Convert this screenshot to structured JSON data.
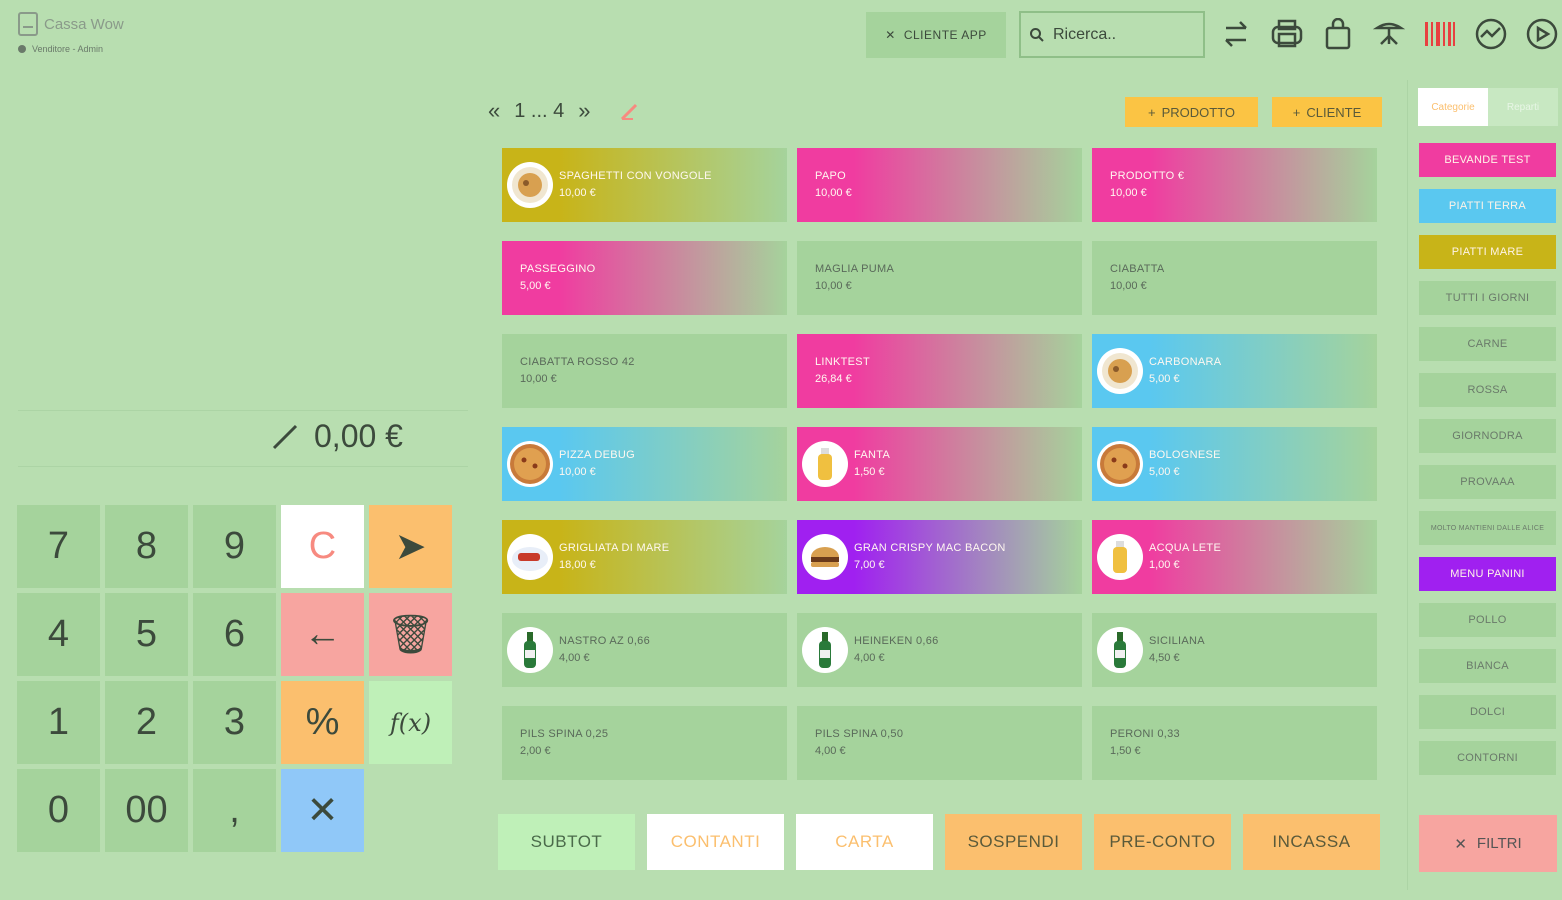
{
  "app": {
    "title": "Cassa Wow",
    "user": "Venditore - Admin"
  },
  "header": {
    "cliente_app_label": "CLIENTE APP",
    "search_placeholder": "Ricerca..",
    "icons": [
      "swap-icon",
      "printer-icon",
      "bag-icon",
      "beach-icon",
      "barcode-icon",
      "chart-icon",
      "settings-icon"
    ]
  },
  "pager": {
    "prev": "«",
    "pages": "1 ... 4",
    "next": "»"
  },
  "top_buttons": {
    "product_label": "PRODOTTO",
    "customer_label": "CLIENTE"
  },
  "display": {
    "total": "0,00 €"
  },
  "keypad": [
    {
      "label": "7",
      "style": "num"
    },
    {
      "label": "8",
      "style": "num"
    },
    {
      "label": "9",
      "style": "num"
    },
    {
      "label": "C",
      "style": "white"
    },
    {
      "label": "➤",
      "style": "orange"
    },
    {
      "label": "4",
      "style": "num"
    },
    {
      "label": "5",
      "style": "num"
    },
    {
      "label": "6",
      "style": "num"
    },
    {
      "label": "←",
      "style": "pink"
    },
    {
      "label": "🗑",
      "style": "pink"
    },
    {
      "label": "1",
      "style": "num"
    },
    {
      "label": "2",
      "style": "num"
    },
    {
      "label": "3",
      "style": "num"
    },
    {
      "label": "%",
      "style": "orange"
    },
    {
      "label": "f(x)",
      "style": "lgreen"
    },
    {
      "label": "0",
      "style": "num"
    },
    {
      "label": "00",
      "style": "num"
    },
    {
      "label": ",",
      "style": "num"
    },
    {
      "label": "✕",
      "style": "blue"
    },
    {
      "label": "",
      "style": "empty"
    }
  ],
  "products": [
    {
      "name": "SPAGHETTI CON VONGOLE",
      "price": "10,00 €",
      "color": "#c8b418",
      "image": "pasta"
    },
    {
      "name": "PAPO",
      "price": "10,00 €",
      "color": "#f03ca0",
      "image": ""
    },
    {
      "name": "PRODOTTO €",
      "price": "10,00 €",
      "color": "#f03ca0",
      "image": ""
    },
    {
      "name": "PASSEGGINO",
      "price": "5,00 €",
      "color": "#f03ca0",
      "image": ""
    },
    {
      "name": "MAGLIA PUMA",
      "price": "10,00 €",
      "color": "",
      "image": ""
    },
    {
      "name": "CIABATTA",
      "price": "10,00 €",
      "color": "",
      "image": ""
    },
    {
      "name": "CIABATTA ROSSO 42",
      "price": "10,00 €",
      "color": "",
      "image": ""
    },
    {
      "name": "LINKTEST",
      "price": "26,84 €",
      "color": "#f03ca0",
      "image": ""
    },
    {
      "name": "CARBONARA",
      "price": "5,00 €",
      "color": "#5ac8f0",
      "image": "pasta"
    },
    {
      "name": "PIZZA DEBUG",
      "price": "10,00 €",
      "color": "#5ac8f0",
      "image": "pizza"
    },
    {
      "name": "FANTA",
      "price": "1,50 €",
      "color": "#f03ca0",
      "image": "bottle"
    },
    {
      "name": "BOLOGNESE",
      "price": "5,00 €",
      "color": "#5ac8f0",
      "image": "pizza"
    },
    {
      "name": "GRIGLIATA DI MARE",
      "price": "18,00 €",
      "color": "#c8b418",
      "image": "plate"
    },
    {
      "name": "GRAN CRISPY MAC BACON",
      "price": "7,00 €",
      "color": "#a020f0",
      "image": "burger"
    },
    {
      "name": "ACQUA LETE",
      "price": "1,00 €",
      "color": "#f03ca0",
      "image": "bottle"
    },
    {
      "name": "NASTRO AZ 0,66",
      "price": "4,00 €",
      "color": "",
      "image": "beer"
    },
    {
      "name": "HEINEKEN 0,66",
      "price": "4,00 €",
      "color": "",
      "image": "beer"
    },
    {
      "name": "SICILIANA",
      "price": "4,50 €",
      "color": "",
      "image": "beer"
    },
    {
      "name": "PILS SPINA 0,25",
      "price": "2,00 €",
      "color": "",
      "image": ""
    },
    {
      "name": "PILS SPINA 0,50",
      "price": "4,00 €",
      "color": "",
      "image": ""
    },
    {
      "name": "PERONI 0,33",
      "price": "1,50 €",
      "color": "",
      "image": ""
    }
  ],
  "actions": [
    {
      "label": "SUBTOT",
      "bg": "#bff0b8",
      "fg": "#4a6a4a"
    },
    {
      "label": "CONTANTI",
      "bg": "#ffffff",
      "fg": "#fbbf6e"
    },
    {
      "label": "CARTA",
      "bg": "#ffffff",
      "fg": "#fbbf6e"
    },
    {
      "label": "SOSPENDI",
      "bg": "#fbbf6e",
      "fg": "#5a5a3a"
    },
    {
      "label": "PRE-CONTO",
      "bg": "#fbbf6e",
      "fg": "#5a5a3a"
    },
    {
      "label": "INCASSA",
      "bg": "#fbbf6e",
      "fg": "#5a5a3a"
    }
  ],
  "sidebar": {
    "tabs": [
      {
        "label": "Categorie",
        "active": true
      },
      {
        "label": "Reparti",
        "active": false
      }
    ],
    "categories": [
      {
        "label": "BEVANDE TEST",
        "color": "#f03ca0"
      },
      {
        "label": "PIATTI TERRA",
        "color": "#5ac8f0"
      },
      {
        "label": "PIATTI MARE",
        "color": "#c8b418"
      },
      {
        "label": "TUTTI I GIORNI",
        "color": ""
      },
      {
        "label": "CARNE",
        "color": ""
      },
      {
        "label": "ROSSA",
        "color": ""
      },
      {
        "label": "GIORNODRA",
        "color": ""
      },
      {
        "label": "PROVAAA",
        "color": ""
      },
      {
        "label": "MOLTO MANTIENI DALLE ALICE",
        "color": ""
      },
      {
        "label": "MENU PANINI",
        "color": "#a020f0"
      },
      {
        "label": "POLLO",
        "color": ""
      },
      {
        "label": "BIANCA",
        "color": ""
      },
      {
        "label": "DOLCI",
        "color": ""
      },
      {
        "label": "CONTORNI",
        "color": ""
      }
    ],
    "filters_label": "FILTRI"
  }
}
